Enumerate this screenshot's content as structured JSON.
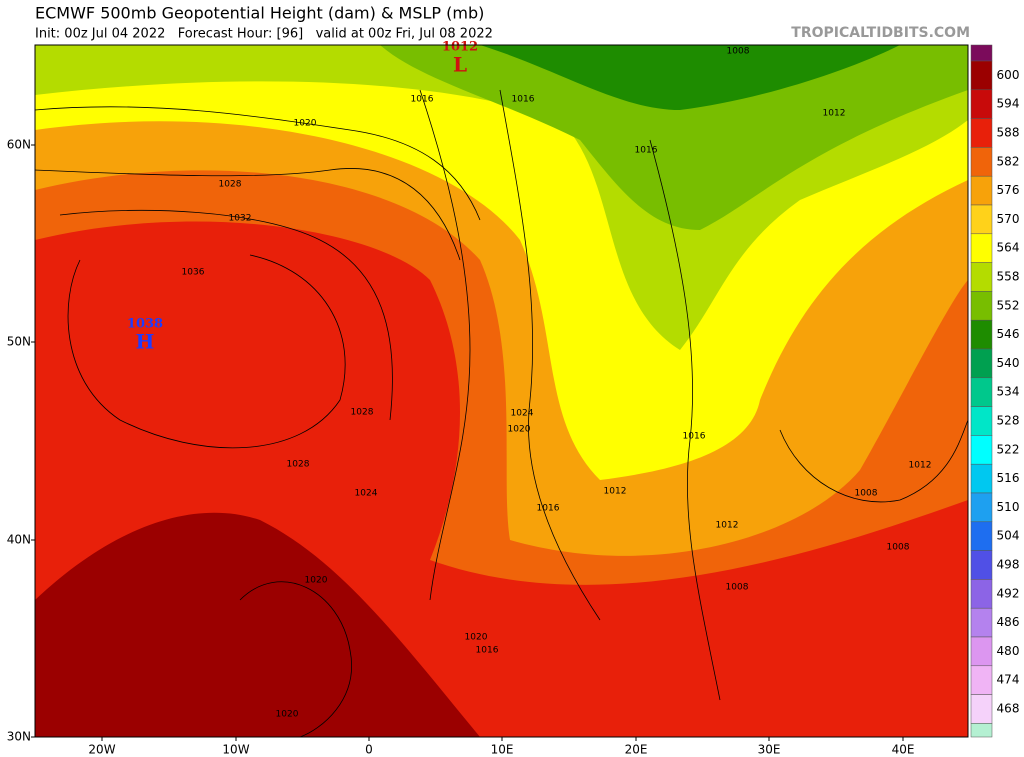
{
  "header": {
    "title": "ECMWF 500mb Geopotential Height (dam) & MSLP (mb)",
    "subtitle": "Init: 00z Jul 04 2022   Forecast Hour: [96]   valid at 00z Fri, Jul 08 2022",
    "source": "TROPICALTIDBITS.COM"
  },
  "map": {
    "lat_labels": [
      "60N",
      "50N",
      "40N",
      "30N"
    ],
    "lon_labels": [
      "20W",
      "10W",
      "0",
      "10E",
      "20E",
      "30E",
      "40E"
    ],
    "centers": [
      {
        "value": 1038,
        "symbol": "H"
      },
      {
        "value": 1012,
        "symbol": "L"
      }
    ],
    "isobar_labels": [
      1020,
      1028,
      1032,
      1036,
      1016,
      1016,
      1008,
      1012,
      1016,
      1028,
      1028,
      1024,
      1024,
      1020,
      1016,
      1012,
      1008,
      1012,
      1016,
      1012,
      1008,
      1008,
      1020,
      1020,
      1016,
      1020
    ]
  },
  "colorbar": {
    "labels": [
      600,
      594,
      588,
      582,
      576,
      570,
      564,
      558,
      552,
      546,
      540,
      534,
      528,
      522,
      516,
      510,
      504,
      498,
      492,
      486,
      480,
      474,
      468
    ],
    "colors": [
      "#7b0b5b",
      "#9b0000",
      "#c80a0a",
      "#e8200a",
      "#f0640a",
      "#f7a20a",
      "#ffd21a",
      "#ffff00",
      "#b4dc00",
      "#78be00",
      "#1e8c00",
      "#00a050",
      "#00c88c",
      "#00e6c8",
      "#00ffff",
      "#00c8f0",
      "#1ea0f0",
      "#1e6ef0",
      "#5050e6",
      "#8c64e6",
      "#b482ee",
      "#dc96f0",
      "#f0b4f5",
      "#f5d2fa",
      "#b4f0d2"
    ]
  }
}
